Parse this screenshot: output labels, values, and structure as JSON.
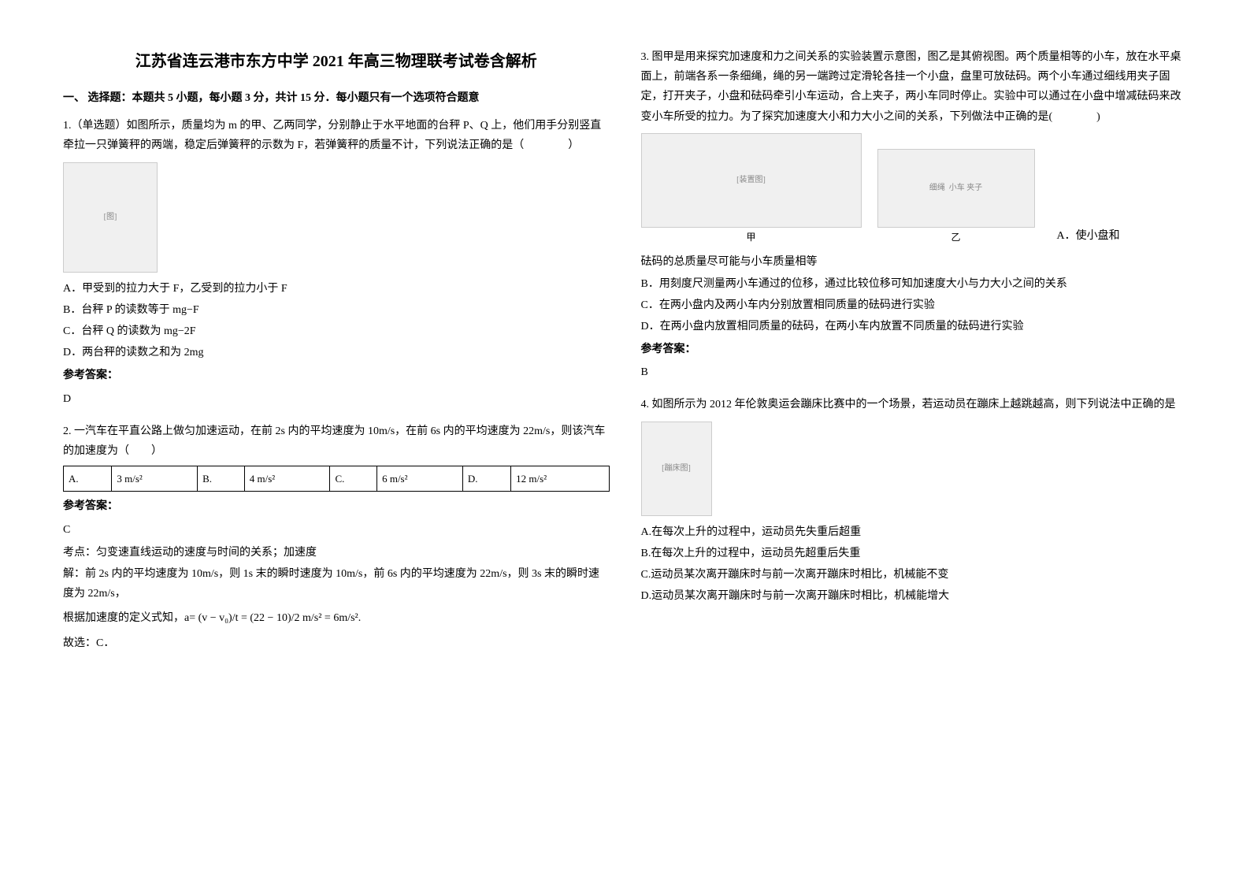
{
  "title": "江苏省连云港市东方中学 2021 年高三物理联考试卷含解析",
  "section1_header": "一、 选择题：本题共 5 小题，每小题 3 分，共计 15 分．每小题只有一个选项符合题意",
  "q1": {
    "text": "1.（单选题）如图所示，质量均为 m 的甲、乙两同学，分别静止于水平地面的台秤 P、Q 上，他们用手分别竖直牵拉一只弹簧秤的两端，稳定后弹簧秤的示数为 F，若弹簧秤的质量不计，下列说法正确的是（　　　　）",
    "optA": "A．甲受到的拉力大于 F，乙受到的拉力小于 F",
    "optB": "B．台秤 P 的读数等于 mg−F",
    "optC": "C．台秤 Q 的读数为 mg−2F",
    "optD": "D．两台秤的读数之和为 2mg",
    "answer_label": "参考答案：",
    "answer": "D"
  },
  "q2": {
    "text": "2. 一汽车在平直公路上做匀加速运动，在前 2s 内的平均速度为 10m/s，在前 6s 内的平均速度为 22m/s，则该汽车的加速度为（　　）",
    "answer_label": "参考答案：",
    "answer": "C",
    "analysis_label": "考点：匀变速直线运动的速度与时间的关系；加速度",
    "analysis1": "解：前 2s 内的平均速度为 10m/s，则 1s 末的瞬时速度为 10m/s，前 6s 内的平均速度为 22m/s，则 3s 末的瞬时速度为 22m/s，",
    "analysis2_prefix": "根据加速度的定义式知，a=",
    "analysis2_formula": "(v − v₀)/t = (22 − 10)/2 m/s² = 6m/s²",
    "analysis3": "故选：C．",
    "table": {
      "cells": [
        [
          "A.",
          "3 m/s²",
          "B.",
          "4 m/s²",
          "C.",
          "6 m/s²",
          "D.",
          "12 m/s²"
        ]
      ]
    }
  },
  "q3": {
    "text": "3. 图甲是用来探究加速度和力之间关系的实验装置示意图，图乙是其俯视图。两个质量相等的小车，放在水平桌面上，前端各系一条细绳，绳的另一端跨过定滑轮各挂一个小盘，盘里可放砝码。两个小车通过细线用夹子固定，打开夹子，小盘和砝码牵引小车运动，合上夹子，两小车同时停止。实验中可以通过在小盘中增减砝码来改变小车所受的拉力。为了探究加速度大小和力大小之间的关系，下列做法中正确的是(　　　　)",
    "fig_label1": "甲",
    "fig_label2": "乙",
    "fig_text1": "细绳",
    "fig_text2": "小车 夹子",
    "optA": "A．使小盘和砝码的总质量尽可能与小车质量相等",
    "optA_part1": "A．使小盘和",
    "optA_part2": "砝码的总质量尽可能与小车质量相等",
    "optB": "B．用刻度尺测量两小车通过的位移，通过比较位移可知加速度大小与力大小之间的关系",
    "optC": "C．在两小盘内及两小车内分别放置相同质量的砝码进行实验",
    "optD": "D．在两小盘内放置相同质量的砝码，在两小车内放置不同质量的砝码进行实验",
    "answer_label": "参考答案：",
    "answer": "B"
  },
  "q4": {
    "text": "4. 如图所示为 2012 年伦敦奥运会蹦床比赛中的一个场景，若运动员在蹦床上越跳越高，则下列说法中正确的是",
    "optA": "A.在每次上升的过程中，运动员先失重后超重",
    "optB": "B.在每次上升的过程中，运动员先超重后失重",
    "optC": "C.运动员某次离开蹦床时与前一次离开蹦床时相比，机械能不变",
    "optD": "D.运动员某次离开蹦床时与前一次离开蹦床时相比，机械能增大"
  }
}
